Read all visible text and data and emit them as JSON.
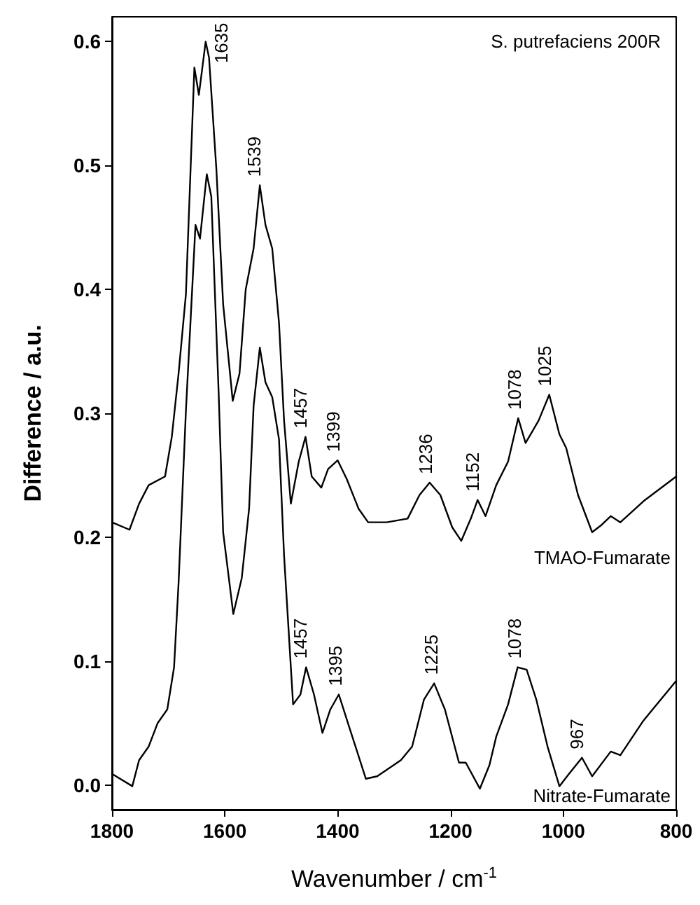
{
  "chart_data": {
    "type": "line",
    "title": "S. putrefaciens 200R",
    "xlabel": "Wavenumber / cm$^{-1}$",
    "ylabel": "Difference / a.u.",
    "xlim": [
      1800,
      800
    ],
    "xticks": [
      1800,
      1600,
      1400,
      1200,
      1000,
      800
    ],
    "ylim": [
      -0.02,
      0.62
    ],
    "yticks": [
      {
        "value": 0,
        "label": "0.0"
      },
      0.1,
      0.2,
      0.3,
      0.4,
      0.5,
      0.6
    ],
    "grid": false,
    "legend": false,
    "marker": "none",
    "line_style": "solid",
    "series": [
      {
        "name": "TMAO-Fumarate",
        "color": "#000000",
        "x": [
          1800,
          1769,
          1752,
          1735,
          1706,
          1694,
          1682,
          1669,
          1654,
          1646,
          1634,
          1628,
          1615,
          1603,
          1586,
          1574,
          1563,
          1549,
          1538,
          1528,
          1516,
          1504,
          1495,
          1483,
          1469,
          1457,
          1446,
          1429,
          1417,
          1400,
          1384,
          1363,
          1346,
          1313,
          1276,
          1255,
          1237,
          1218,
          1197,
          1181,
          1164,
          1152,
          1138,
          1119,
          1098,
          1080,
          1067,
          1044,
          1025,
          1007,
          995,
          974,
          949,
          932,
          916,
          899,
          858,
          800
        ],
        "values": [
          0.212,
          0.206,
          0.227,
          0.242,
          0.249,
          0.281,
          0.332,
          0.396,
          0.579,
          0.557,
          0.6,
          0.587,
          0.497,
          0.388,
          0.31,
          0.332,
          0.4,
          0.433,
          0.484,
          0.452,
          0.433,
          0.373,
          0.294,
          0.227,
          0.261,
          0.281,
          0.249,
          0.24,
          0.255,
          0.262,
          0.247,
          0.223,
          0.212,
          0.212,
          0.215,
          0.234,
          0.244,
          0.234,
          0.208,
          0.197,
          0.215,
          0.23,
          0.217,
          0.242,
          0.261,
          0.296,
          0.276,
          0.294,
          0.315,
          0.283,
          0.272,
          0.234,
          0.204,
          0.21,
          0.217,
          0.212,
          0.229,
          0.249
        ]
      },
      {
        "name": "Nitrate-Fumarate",
        "color": "#000000",
        "x": [
          1800,
          1764,
          1752,
          1735,
          1719,
          1702,
          1690,
          1682,
          1669,
          1652,
          1644,
          1632,
          1624,
          1611,
          1603,
          1585,
          1570,
          1557,
          1549,
          1538,
          1528,
          1516,
          1504,
          1495,
          1479,
          1466,
          1456,
          1442,
          1427,
          1413,
          1398,
          1379,
          1350,
          1330,
          1288,
          1268,
          1247,
          1229,
          1210,
          1185,
          1173,
          1148,
          1131,
          1119,
          1098,
          1081,
          1065,
          1048,
          1028,
          1007,
          990,
          967,
          949,
          916,
          899,
          858,
          800
        ],
        "values": [
          0.009,
          -0.001,
          0.02,
          0.031,
          0.05,
          0.061,
          0.095,
          0.163,
          0.302,
          0.452,
          0.441,
          0.493,
          0.475,
          0.317,
          0.204,
          0.138,
          0.167,
          0.223,
          0.306,
          0.353,
          0.325,
          0.313,
          0.279,
          0.185,
          0.065,
          0.073,
          0.095,
          0.073,
          0.042,
          0.061,
          0.073,
          0.046,
          0.005,
          0.007,
          0.02,
          0.031,
          0.069,
          0.082,
          0.061,
          0.018,
          0.018,
          -0.003,
          0.016,
          0.039,
          0.065,
          0.095,
          0.093,
          0.069,
          0.031,
          -0.001,
          0.009,
          0.022,
          0.007,
          0.027,
          0.024,
          0.052,
          0.084
        ]
      }
    ],
    "annotations": [
      {
        "text": "1635",
        "x": 1635,
        "y": 0.6
      },
      {
        "text": "1539",
        "x": 1539,
        "y": 0.484
      },
      {
        "text": "1457",
        "x": 1457,
        "y": 0.281
      },
      {
        "text": "1399",
        "x": 1399,
        "y": 0.262
      },
      {
        "text": "1236",
        "x": 1236,
        "y": 0.244
      },
      {
        "text": "1152",
        "x": 1152,
        "y": 0.23
      },
      {
        "text": "1078",
        "x": 1078,
        "y": 0.296
      },
      {
        "text": "1025",
        "x": 1025,
        "y": 0.315
      },
      {
        "text": "1457",
        "x": 1457,
        "y": 0.095
      },
      {
        "text": "1395",
        "x": 1395,
        "y": 0.073
      },
      {
        "text": "1225",
        "x": 1225,
        "y": 0.082
      },
      {
        "text": "1078",
        "x": 1078,
        "y": 0.095
      },
      {
        "text": "967",
        "x": 967,
        "y": 0.022
      }
    ]
  }
}
